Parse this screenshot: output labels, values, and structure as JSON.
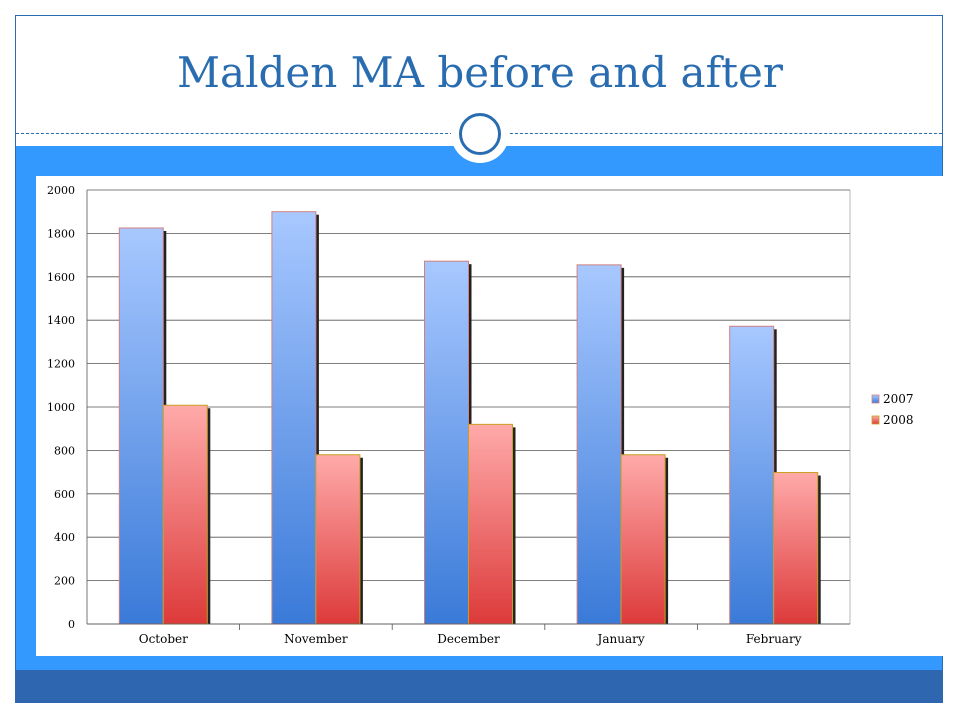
{
  "slide": {
    "title": "Malden MA before and after"
  },
  "colors": {
    "accent": "#2a6cb0",
    "band": "#3399ff",
    "band_dark": "#2e66b0",
    "series_2007_top": "#a8c8ff",
    "series_2007_bottom": "#3a7ad8",
    "series_2008_top": "#ffaaaa",
    "series_2008_bottom": "#dd3a3a"
  },
  "chart_data": {
    "type": "bar",
    "title": "",
    "xlabel": "",
    "ylabel": "",
    "categories": [
      "October",
      "November",
      "December",
      "January",
      "February"
    ],
    "series": [
      {
        "name": "2007",
        "values": [
          1825,
          1900,
          1672,
          1655,
          1372
        ]
      },
      {
        "name": "2008",
        "values": [
          1008,
          780,
          920,
          780,
          698
        ]
      }
    ],
    "ylim": [
      0,
      2000
    ],
    "yticks": [
      "0",
      "200",
      "400",
      "600",
      "800",
      "1000",
      "1200",
      "1400",
      "1600",
      "1800",
      "2000"
    ],
    "grid": true,
    "legend": "right"
  }
}
